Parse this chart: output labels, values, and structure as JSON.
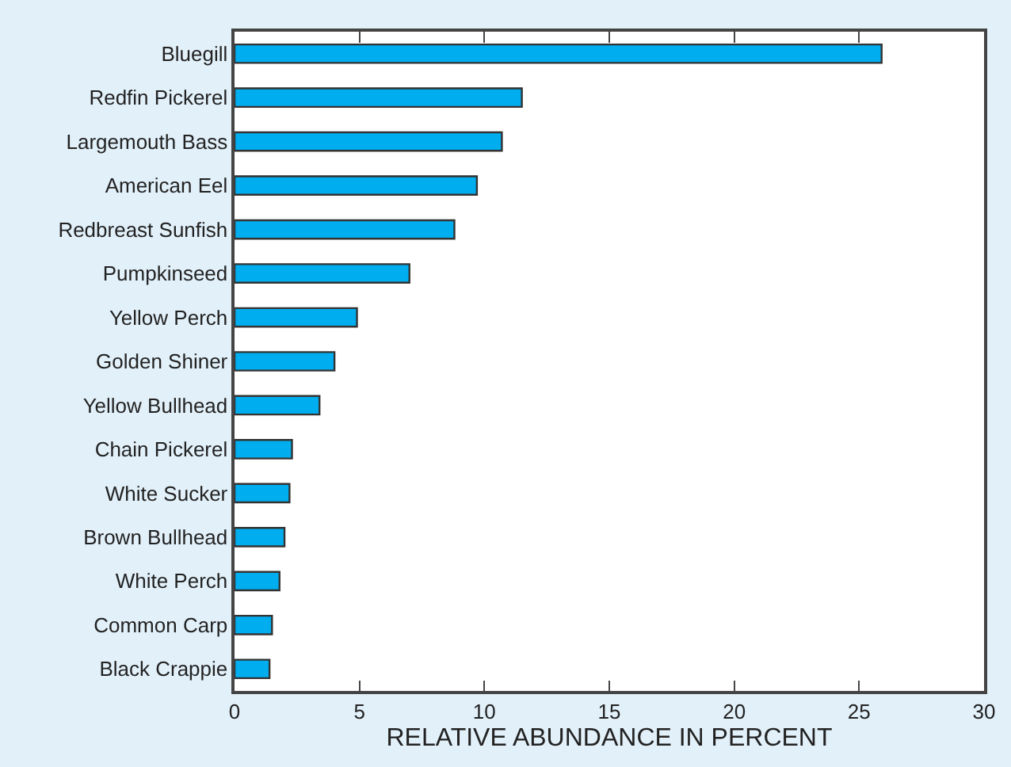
{
  "chart_data": {
    "type": "bar",
    "orientation": "horizontal",
    "xlabel": "RELATIVE ABUNDANCE IN PERCENT",
    "categories": [
      "Bluegill",
      "Redfin Pickerel",
      "Largemouth Bass",
      "American Eel",
      "Redbreast Sunfish",
      "Pumpkinseed",
      "Yellow Perch",
      "Golden Shiner",
      "Yellow Bullhead",
      "Chain Pickerel",
      "White Sucker",
      "Brown Bullhead",
      "White Perch",
      "Common Carp",
      "Black Crappie"
    ],
    "values": [
      25.9,
      11.5,
      10.7,
      9.7,
      8.8,
      7.0,
      4.9,
      4.0,
      3.4,
      2.3,
      2.2,
      2.0,
      1.8,
      1.5,
      1.4
    ],
    "color": "#00aeef",
    "xlim": [
      0,
      30
    ],
    "xticks": [
      0,
      5,
      10,
      15,
      20,
      25,
      30
    ]
  }
}
